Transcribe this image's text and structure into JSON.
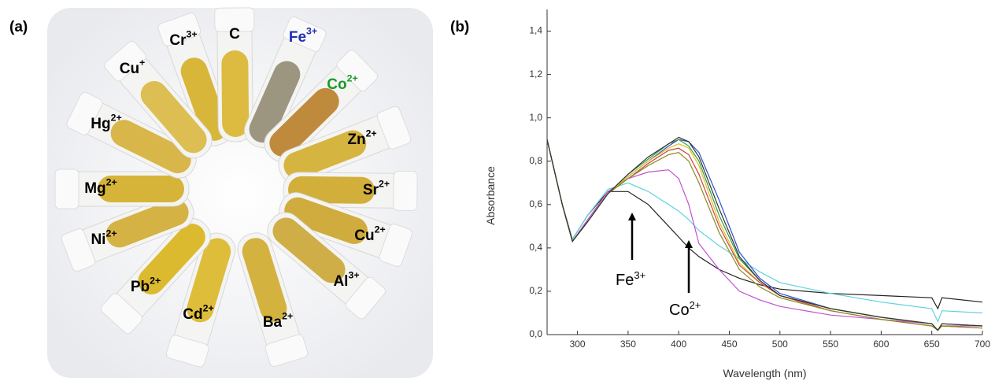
{
  "photo": {
    "label": "(a)",
    "tubes": [
      {
        "ion": "Cr",
        "charge": "3+",
        "color": "#000000",
        "liquid": "#d8b63a"
      },
      {
        "ion": "C",
        "charge": "",
        "color": "#000000",
        "liquid": "#dcbb40"
      },
      {
        "ion": "Fe",
        "charge": "3+",
        "color": "#1f2fb0",
        "liquid": "#9c9580"
      },
      {
        "ion": "Co",
        "charge": "2+",
        "color": "#1a9a2a",
        "liquid": "#c08a3c"
      },
      {
        "ion": "Zn",
        "charge": "2+",
        "color": "#000000",
        "liquid": "#d6b440"
      },
      {
        "ion": "Sr",
        "charge": "2+",
        "color": "#000000",
        "liquid": "#d2ae3a"
      },
      {
        "ion": "Cu",
        "charge": "2+",
        "color": "#000000",
        "liquid": "#d0ac3e"
      },
      {
        "ion": "Al",
        "charge": "3+",
        "color": "#000000",
        "liquid": "#cfae48"
      },
      {
        "ion": "Ba",
        "charge": "2+",
        "color": "#000000",
        "liquid": "#d4b240"
      },
      {
        "ion": "Cd",
        "charge": "2+",
        "color": "#000000",
        "liquid": "#ddbd3a"
      },
      {
        "ion": "Pb",
        "charge": "2+",
        "color": "#000000",
        "liquid": "#dcba30"
      },
      {
        "ion": "Ni",
        "charge": "2+",
        "color": "#000000",
        "liquid": "#d4b244"
      },
      {
        "ion": "Mg",
        "charge": "2+",
        "color": "#000000",
        "liquid": "#d6b43a"
      },
      {
        "ion": "Hg",
        "charge": "2+",
        "color": "#000000",
        "liquid": "#d8b64a"
      },
      {
        "ion": "Cu",
        "charge": "+",
        "color": "#000000",
        "liquid": "#dcbe52"
      }
    ]
  },
  "chart_data": {
    "type": "line",
    "panel_label": "(b)",
    "x_label": "Wavelength (nm)",
    "y_label": "Absorbance",
    "x": [
      270,
      285,
      295,
      310,
      330,
      350,
      370,
      390,
      400,
      410,
      420,
      440,
      460,
      480,
      500,
      550,
      600,
      650,
      656,
      660,
      700
    ],
    "series": [
      {
        "color": "#222222",
        "values": [
          0.9,
          0.6,
          0.44,
          0.55,
          0.66,
          0.66,
          0.6,
          0.5,
          0.45,
          0.4,
          0.36,
          0.3,
          0.26,
          0.23,
          0.21,
          0.19,
          0.18,
          0.17,
          0.12,
          0.17,
          0.15
        ]
      },
      {
        "color": "#5fd3dc",
        "values": [
          0.9,
          0.6,
          0.44,
          0.55,
          0.67,
          0.7,
          0.66,
          0.6,
          0.57,
          0.53,
          0.48,
          0.41,
          0.35,
          0.29,
          0.24,
          0.19,
          0.15,
          0.12,
          0.06,
          0.11,
          0.1
        ]
      },
      {
        "color": "#c050d0",
        "values": [
          0.9,
          0.6,
          0.43,
          0.53,
          0.66,
          0.72,
          0.75,
          0.76,
          0.72,
          0.6,
          0.42,
          0.3,
          0.2,
          0.16,
          0.13,
          0.09,
          0.07,
          0.05,
          0.02,
          0.04,
          0.04
        ]
      },
      {
        "color": "#3050c8",
        "values": [
          0.9,
          0.6,
          0.43,
          0.52,
          0.65,
          0.73,
          0.8,
          0.87,
          0.9,
          0.89,
          0.84,
          0.62,
          0.38,
          0.26,
          0.19,
          0.12,
          0.08,
          0.05,
          0.02,
          0.05,
          0.04
        ]
      },
      {
        "color": "#30a040",
        "values": [
          0.9,
          0.6,
          0.43,
          0.52,
          0.65,
          0.74,
          0.81,
          0.88,
          0.9,
          0.87,
          0.8,
          0.55,
          0.35,
          0.25,
          0.18,
          0.12,
          0.08,
          0.05,
          0.02,
          0.05,
          0.04
        ]
      },
      {
        "color": "#e0c020",
        "values": [
          0.9,
          0.6,
          0.43,
          0.52,
          0.65,
          0.73,
          0.8,
          0.86,
          0.88,
          0.86,
          0.78,
          0.52,
          0.33,
          0.24,
          0.18,
          0.12,
          0.08,
          0.05,
          0.02,
          0.05,
          0.04
        ]
      },
      {
        "color": "#d04040",
        "values": [
          0.9,
          0.6,
          0.43,
          0.52,
          0.65,
          0.72,
          0.79,
          0.85,
          0.86,
          0.83,
          0.74,
          0.5,
          0.32,
          0.24,
          0.18,
          0.11,
          0.07,
          0.04,
          0.02,
          0.04,
          0.03
        ]
      },
      {
        "color": "#8a8a20",
        "values": [
          0.9,
          0.6,
          0.43,
          0.52,
          0.65,
          0.72,
          0.78,
          0.83,
          0.84,
          0.8,
          0.7,
          0.47,
          0.3,
          0.22,
          0.17,
          0.11,
          0.07,
          0.04,
          0.02,
          0.04,
          0.03
        ]
      },
      {
        "color": "#333333",
        "values": [
          0.9,
          0.6,
          0.43,
          0.52,
          0.65,
          0.74,
          0.82,
          0.88,
          0.91,
          0.89,
          0.82,
          0.58,
          0.36,
          0.25,
          0.18,
          0.12,
          0.08,
          0.05,
          0.02,
          0.05,
          0.04
        ]
      }
    ],
    "annotations": [
      {
        "text": "Fe",
        "sup": "3+"
      },
      {
        "text": "Co",
        "sup": "2+"
      }
    ],
    "xlim": [
      270,
      700
    ],
    "xticks": [
      300,
      350,
      400,
      450,
      500,
      550,
      600,
      650,
      700
    ],
    "ylim": [
      0,
      1.5
    ],
    "yticks": [
      {
        "value": 0,
        "label": "0,0"
      },
      {
        "value": 0.2,
        "label": "0,2"
      },
      {
        "value": 0.4,
        "label": "0,4"
      },
      {
        "value": 0.6,
        "label": "0,6"
      },
      {
        "value": 0.8,
        "label": "0,8"
      },
      {
        "value": 1.0,
        "label": "1,0"
      },
      {
        "value": 1.2,
        "label": "1,2"
      },
      {
        "value": 1.4,
        "label": "1,4"
      }
    ],
    "grid": false
  }
}
